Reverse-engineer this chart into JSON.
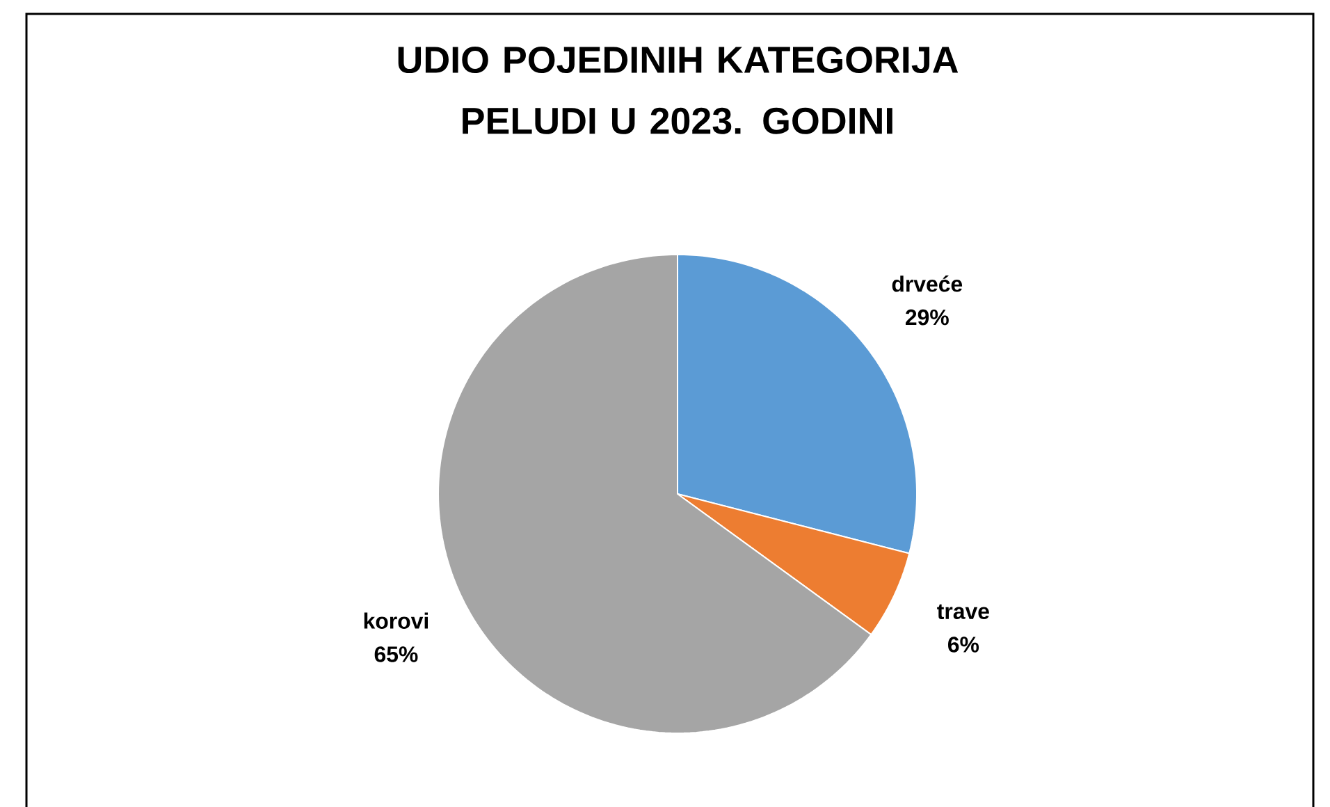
{
  "chart_data": {
    "type": "pie",
    "title": "UDIO POJEDINIH KATEGORIJA PELUDI U 2023. GODINI",
    "categories": [
      "drveće",
      "trave",
      "korovi"
    ],
    "values": [
      29,
      6,
      65
    ],
    "value_labels": [
      "29%",
      "6%",
      "65%"
    ],
    "colors": [
      "#5b9bd5",
      "#ed7d31",
      "#a5a5a5"
    ]
  }
}
